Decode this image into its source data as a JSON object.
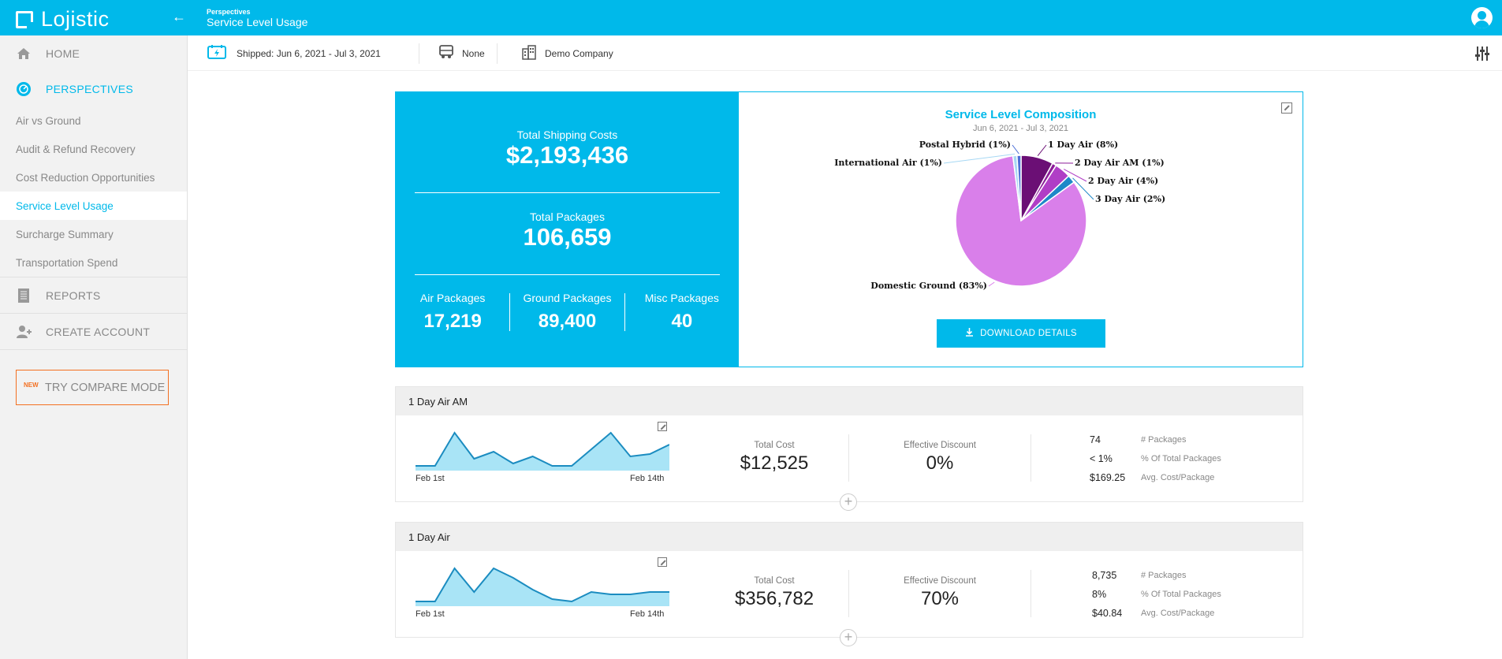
{
  "header": {
    "brand": "Lojistic",
    "breadcrumb_small": "Perspectives",
    "breadcrumb_title": "Service Level Usage"
  },
  "sidebar": {
    "home": "HOME",
    "perspectives": "PERSPECTIVES",
    "sub_items": [
      "Air vs Ground",
      "Audit & Refund Recovery",
      "Cost Reduction Opportunities",
      "Service Level Usage",
      "Surcharge Summary",
      "Transportation Spend"
    ],
    "reports": "REPORTS",
    "create_account": "CREATE ACCOUNT",
    "compare_new_badge": "NEW",
    "compare_label": "TRY COMPARE MODE"
  },
  "filters": {
    "shipped": "Shipped: Jun 6, 2021 - Jul 3, 2021",
    "carrier": "None",
    "company": "Demo Company"
  },
  "summary": {
    "total_shipping_label": "Total Shipping Costs",
    "total_shipping_value": "$2,193,436",
    "total_packages_label": "Total Packages",
    "total_packages_value": "106,659",
    "air_label": "Air Packages",
    "air_value": "17,219",
    "ground_label": "Ground Packages",
    "ground_value": "89,400",
    "misc_label": "Misc Packages",
    "misc_value": "40"
  },
  "composition": {
    "title": "Service Level Composition",
    "subtitle": "Jun 6, 2021 - Jul 3, 2021",
    "download_label": "DOWNLOAD DETAILS"
  },
  "chart_data": {
    "type": "pie",
    "title": "Service Level Composition",
    "subtitle": "Jun 6, 2021 - Jul 3, 2021",
    "slices": [
      {
        "label": "1 Day Air (8%)",
        "name": "1 Day Air",
        "value": 8,
        "color": "#6b0f75"
      },
      {
        "label": "2 Day Air AM (1%)",
        "name": "2 Day Air AM",
        "value": 1,
        "color": "#8c1d99"
      },
      {
        "label": "2 Day Air (4%)",
        "name": "2 Day Air",
        "value": 4,
        "color": "#b03ec6"
      },
      {
        "label": "3 Day Air (2%)",
        "name": "3 Day Air",
        "value": 2,
        "color": "#1e88c8"
      },
      {
        "label": "Domestic Ground (83%)",
        "name": "Domestic Ground",
        "value": 83,
        "color": "#d97fea"
      },
      {
        "label": "International Air (1%)",
        "name": "International Air",
        "value": 1,
        "color": "#a7d8f4"
      },
      {
        "label": "Postal Hybrid (1%)",
        "name": "Postal Hybrid",
        "value": 1,
        "color": "#4c6fd6"
      }
    ]
  },
  "cards": [
    {
      "title": "1 Day Air AM",
      "spark_start": "Feb 1st",
      "spark_end": "Feb 14th",
      "spark_values": [
        2,
        2,
        16,
        5,
        8,
        3,
        6,
        2,
        2,
        9,
        16,
        6,
        7,
        11
      ],
      "total_cost_label": "Total Cost",
      "total_cost": "$12,525",
      "discount_label": "Effective Discount",
      "discount": "0%",
      "packages": "74",
      "packages_label": "# Packages",
      "pct": "< 1%",
      "pct_label": "% Of Total Packages",
      "avg": "$169.25",
      "avg_label": "Avg. Cost/Package"
    },
    {
      "title": "1 Day Air",
      "spark_start": "Feb 1st",
      "spark_end": "Feb 14th",
      "spark_values": [
        2,
        2,
        16,
        6,
        16,
        12,
        7,
        3,
        2,
        6,
        5,
        5,
        6,
        6
      ],
      "total_cost_label": "Total Cost",
      "total_cost": "$356,782",
      "discount_label": "Effective Discount",
      "discount": "70%",
      "packages": "8,735",
      "packages_label": "# Packages",
      "pct": "8%",
      "pct_label": "% Of Total Packages",
      "avg": "$40.84",
      "avg_label": "Avg. Cost/Package"
    }
  ]
}
